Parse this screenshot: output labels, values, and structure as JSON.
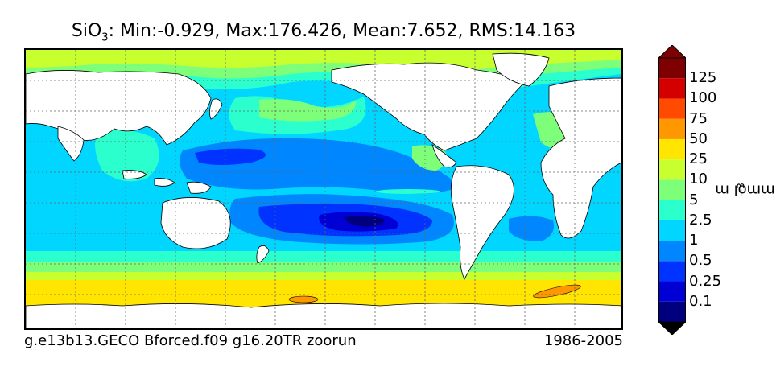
{
  "title": {
    "species": "SiO",
    "subscript": "3",
    "stats": ": Min:-0.929, Max:176.426, Mean:7.652, RMS:14.163"
  },
  "footer": {
    "case_name": "g.e13b13.GECO Bforced.f09 g16.20TR zoorun",
    "period": "1986-2005"
  },
  "colorbar": {
    "unit_base": "mmol m",
    "unit_exp": "−3",
    "ticks": [
      "0.1",
      "0.25",
      "0.5",
      "1",
      "2.5",
      "5",
      "10",
      "25",
      "50",
      "75",
      "100",
      "125"
    ],
    "colors": [
      "#00007f",
      "#0000d4",
      "#0033ff",
      "#0087ff",
      "#00d6ff",
      "#2affcd",
      "#7dff7a",
      "#c8ff2e",
      "#ffe500",
      "#ff9700",
      "#ff4a00",
      "#d40000",
      "#7f0000"
    ],
    "extend": "both"
  },
  "map": {
    "land_color": "#ffffff",
    "gridlines": "dotted"
  }
}
